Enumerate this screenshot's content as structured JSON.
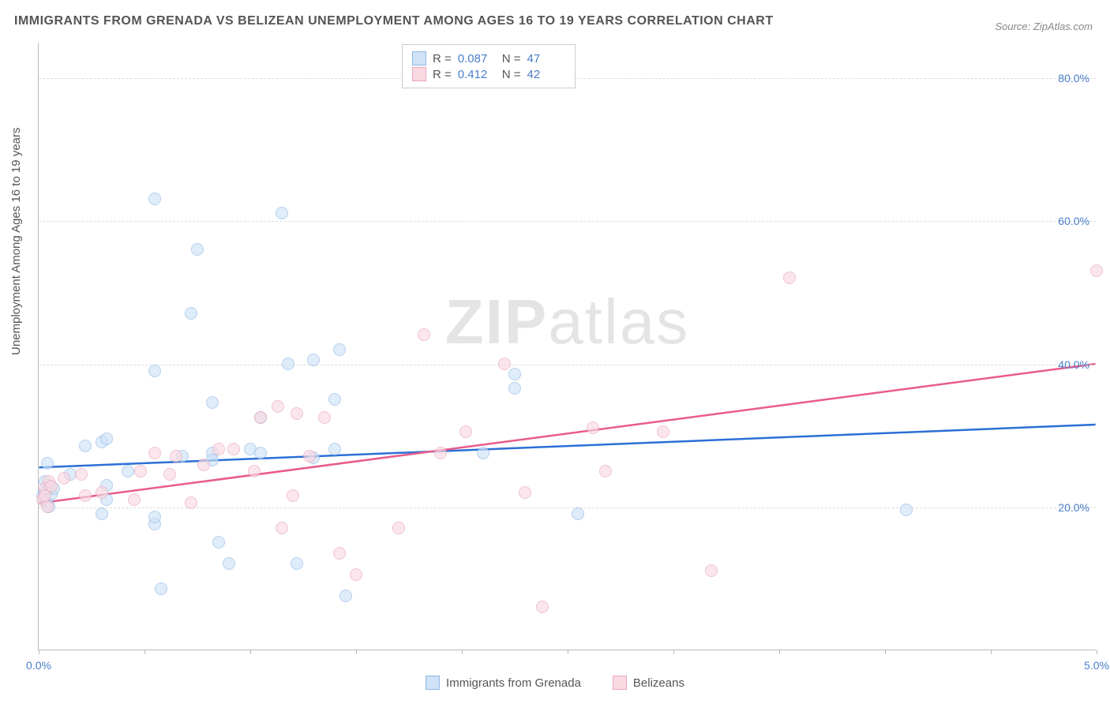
{
  "title": "IMMIGRANTS FROM GRENADA VS BELIZEAN UNEMPLOYMENT AMONG AGES 16 TO 19 YEARS CORRELATION CHART",
  "source": "Source: ZipAtlas.com",
  "ylabel": "Unemployment Among Ages 16 to 19 years",
  "watermark_a": "ZIP",
  "watermark_b": "atlas",
  "colors": {
    "title": "#555555",
    "source": "#888888",
    "axis": "#bbbbbb",
    "grid": "#dddddd",
    "tick_label": "#4a7ec9",
    "series1_stroke": "#8fb8e6",
    "series1_fill": "#cfe2f7",
    "series1_line": "#2b6fd6",
    "series2_stroke": "#e8a5b8",
    "series2_fill": "#f9d9e2",
    "series2_line": "#e85c88",
    "legend_text": "#555555"
  },
  "chart": {
    "type": "scatter",
    "xlim": [
      0.0,
      5.0
    ],
    "ylim": [
      0.0,
      85.0
    ],
    "yticks": [
      20.0,
      40.0,
      60.0,
      80.0
    ],
    "ytick_labels": [
      "20.0%",
      "40.0%",
      "60.0%",
      "80.0%"
    ],
    "xticks": [
      0.0,
      0.5,
      1.0,
      1.5,
      2.0,
      2.5,
      3.0,
      3.5,
      4.0,
      4.5,
      5.0
    ],
    "xtick_labels_shown": {
      "0.0": "0.0%",
      "5.0": "5.0%"
    },
    "marker_radius": 8,
    "marker_opacity": 0.65,
    "title_fontsize": 16,
    "label_fontsize": 15,
    "tick_fontsize": 14
  },
  "legend_top": {
    "rows": [
      {
        "swatch": "series1",
        "r_label": "R =",
        "r_value": "0.087",
        "n_label": "N =",
        "n_value": "47"
      },
      {
        "swatch": "series2",
        "r_label": "R =",
        "r_value": "0.412",
        "n_label": "N =",
        "n_value": "42"
      }
    ]
  },
  "legend_bottom": {
    "items": [
      {
        "swatch": "series1",
        "label": "Immigrants from Grenada"
      },
      {
        "swatch": "series2",
        "label": "Belizeans"
      }
    ]
  },
  "trendlines": {
    "series1": {
      "y_at_xmin": 25.5,
      "y_at_xmax": 31.5
    },
    "series2": {
      "y_at_xmin": 20.5,
      "y_at_xmax": 40.0
    }
  },
  "series1_points": [
    [
      0.02,
      21.5
    ],
    [
      0.03,
      22.0
    ],
    [
      0.04,
      20.5
    ],
    [
      0.05,
      23.0
    ],
    [
      0.06,
      21.8
    ],
    [
      0.03,
      23.5
    ],
    [
      0.05,
      20.0
    ],
    [
      0.07,
      22.5
    ],
    [
      0.04,
      26.0
    ],
    [
      0.15,
      24.5
    ],
    [
      0.3,
      29.0
    ],
    [
      0.32,
      29.5
    ],
    [
      0.3,
      19.0
    ],
    [
      0.32,
      21.0
    ],
    [
      0.32,
      23.0
    ],
    [
      0.42,
      25.0
    ],
    [
      0.55,
      63.0
    ],
    [
      0.55,
      39.0
    ],
    [
      0.55,
      17.5
    ],
    [
      0.55,
      18.5
    ],
    [
      0.58,
      8.5
    ],
    [
      0.68,
      27.0
    ],
    [
      0.72,
      47.0
    ],
    [
      0.75,
      56.0
    ],
    [
      0.82,
      34.5
    ],
    [
      0.82,
      27.5
    ],
    [
      0.82,
      26.5
    ],
    [
      0.85,
      15.0
    ],
    [
      0.9,
      12.0
    ],
    [
      1.0,
      28.0
    ],
    [
      1.05,
      32.5
    ],
    [
      1.05,
      27.5
    ],
    [
      1.15,
      61.0
    ],
    [
      1.18,
      40.0
    ],
    [
      1.22,
      12.0
    ],
    [
      1.3,
      40.5
    ],
    [
      1.3,
      26.8
    ],
    [
      1.4,
      35.0
    ],
    [
      1.4,
      28.0
    ],
    [
      1.42,
      42.0
    ],
    [
      1.45,
      7.5
    ],
    [
      2.1,
      27.5
    ],
    [
      2.25,
      38.5
    ],
    [
      2.25,
      36.5
    ],
    [
      2.55,
      19.0
    ],
    [
      4.1,
      19.5
    ],
    [
      0.22,
      28.5
    ]
  ],
  "series2_points": [
    [
      0.02,
      21.0
    ],
    [
      0.03,
      22.5
    ],
    [
      0.04,
      20.0
    ],
    [
      0.05,
      23.5
    ],
    [
      0.03,
      21.5
    ],
    [
      0.06,
      22.8
    ],
    [
      0.12,
      24.0
    ],
    [
      0.2,
      24.5
    ],
    [
      0.22,
      21.5
    ],
    [
      0.3,
      22.0
    ],
    [
      0.45,
      21.0
    ],
    [
      0.48,
      25.0
    ],
    [
      0.55,
      27.5
    ],
    [
      0.62,
      24.5
    ],
    [
      0.65,
      27.0
    ],
    [
      0.72,
      20.5
    ],
    [
      0.78,
      25.8
    ],
    [
      0.85,
      28.0
    ],
    [
      0.92,
      28.0
    ],
    [
      1.02,
      25.0
    ],
    [
      1.05,
      32.5
    ],
    [
      1.13,
      34.0
    ],
    [
      1.15,
      17.0
    ],
    [
      1.2,
      21.5
    ],
    [
      1.22,
      33.0
    ],
    [
      1.28,
      27.0
    ],
    [
      1.35,
      32.5
    ],
    [
      1.42,
      13.5
    ],
    [
      1.5,
      10.5
    ],
    [
      1.7,
      17.0
    ],
    [
      1.82,
      44.0
    ],
    [
      1.9,
      27.5
    ],
    [
      2.02,
      30.5
    ],
    [
      2.2,
      40.0
    ],
    [
      2.3,
      22.0
    ],
    [
      2.38,
      6.0
    ],
    [
      2.62,
      31.0
    ],
    [
      2.68,
      25.0
    ],
    [
      2.95,
      30.5
    ],
    [
      3.18,
      11.0
    ],
    [
      3.55,
      52.0
    ],
    [
      5.0,
      53.0
    ]
  ]
}
